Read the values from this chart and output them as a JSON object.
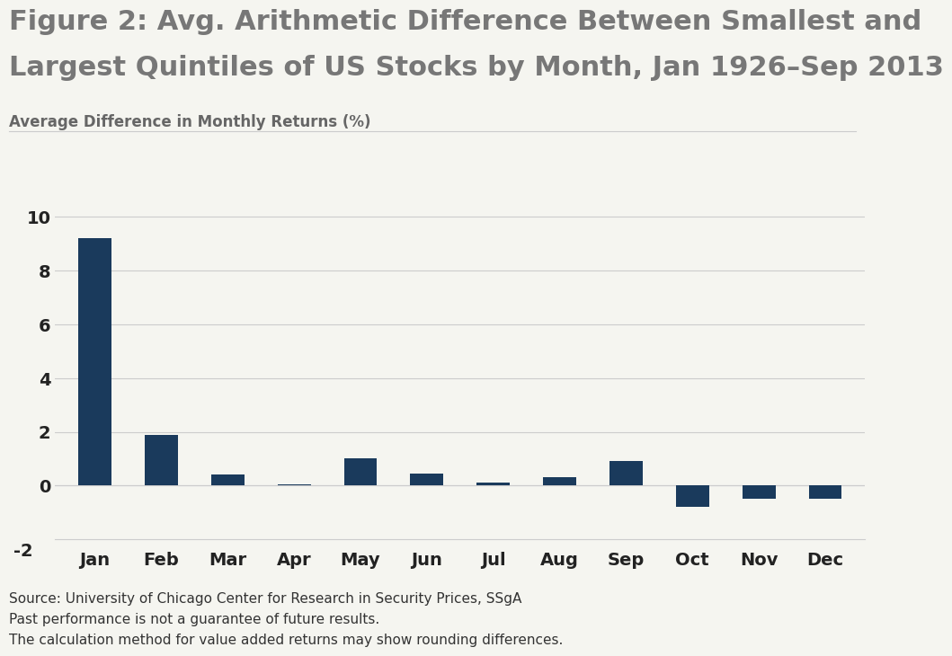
{
  "title_line1": "Figure 2: Avg. Arithmetic Difference Between Smallest and",
  "title_line2": "Largest Quintiles of US Stocks by Month, Jan 1926–Sep 2013",
  "ylabel": "Average Difference in Monthly Returns (%)",
  "categories": [
    "Jan",
    "Feb",
    "Mar",
    "Apr",
    "May",
    "Jun",
    "Jul",
    "Aug",
    "Sep",
    "Oct",
    "Nov",
    "Dec"
  ],
  "values": [
    9.2,
    1.9,
    0.4,
    0.05,
    1.0,
    0.45,
    0.1,
    0.3,
    0.9,
    -0.8,
    -0.5,
    -0.5
  ],
  "bar_color": "#1a3a5c",
  "background_color": "#f5f5f0",
  "ylim": [
    -2,
    11
  ],
  "yticks": [
    0,
    2,
    4,
    6,
    8,
    10
  ],
  "grid_color": "#cccccc",
  "title_color": "#777777",
  "axis_label_color": "#666666",
  "tick_label_color": "#222222",
  "footnote_color": "#333333",
  "footnote_line1": "Source: University of Chicago Center for Research in Security Prices, SSgA",
  "footnote_line2": "Past performance is not a guarantee of future results.",
  "footnote_line3": "The calculation method for value added returns may show rounding differences.",
  "title_fontsize": 22,
  "ylabel_fontsize": 12,
  "tick_fontsize": 14,
  "footnote_fontsize": 11,
  "bar_width": 0.5
}
